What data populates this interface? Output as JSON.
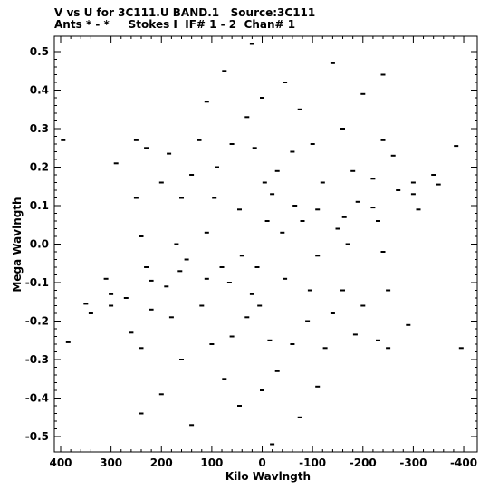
{
  "header": {
    "line1": "V vs U for 3C111.U BAND.1   Source:3C111",
    "line2": "Ants * - *     Stokes I  IF# 1 - 2  Chan# 1"
  },
  "chart_data": {
    "type": "scatter",
    "title": "V vs U for 3C111.U BAND.1   Source:3C111",
    "subtitle": "Ants * - *     Stokes I  IF# 1 - 2  Chan# 1",
    "xlabel": "Kilo Wavlngth",
    "ylabel": "Mega Wavlngth",
    "x_reversed": true,
    "xlim": [
      410,
      -420
    ],
    "ylim": [
      -0.53,
      0.53
    ],
    "xticks": [
      400,
      300,
      200,
      100,
      0,
      -100,
      -200,
      -300,
      -400
    ],
    "yticks": [
      0.5,
      0.4,
      0.3,
      0.2,
      0.1,
      0.0,
      -0.1,
      -0.2,
      -0.3,
      -0.4,
      -0.5
    ],
    "xtick_labels": [
      "400",
      "300",
      "200",
      "100",
      "0",
      "-100",
      "-200",
      "-300",
      "-400"
    ],
    "ytick_labels": [
      "0.5",
      "0.4",
      "0.3",
      "0.2",
      "0.1",
      "0.0",
      "-0.1",
      "-0.2",
      "-0.3",
      "-0.4",
      "-0.5"
    ],
    "pattern_note": "Six-armed snowflake u-v coverage: radial spokes of baseline tracks plus concentric hexagonal rings; points mirrored through origin",
    "series": [
      {
        "values": [
          [
            220,
            -0.095
          ],
          [
            -220,
            0.095
          ],
          [
            163,
            -0.07
          ],
          [
            -163,
            0.07
          ],
          [
            300,
            -0.13
          ],
          [
            -300,
            0.13
          ],
          [
            350,
            -0.155
          ],
          [
            -350,
            0.155
          ],
          [
            385,
            -0.255
          ],
          [
            -385,
            0.255
          ],
          [
            395,
            0.27
          ],
          [
            -395,
            -0.27
          ],
          [
            250,
            0.27
          ],
          [
            -250,
            -0.27
          ],
          [
            95,
            0.12
          ],
          [
            -95,
            -0.12
          ],
          [
            140,
            0.18
          ],
          [
            -140,
            -0.18
          ],
          [
            185,
            0.235
          ],
          [
            -185,
            -0.235
          ],
          [
            -140,
            0.47
          ],
          [
            140,
            -0.47
          ],
          [
            -75,
            0.35
          ],
          [
            75,
            -0.35
          ],
          [
            -30,
            0.19
          ],
          [
            30,
            -0.19
          ],
          [
            0,
            0.38
          ],
          [
            0,
            -0.38
          ],
          [
            -65,
            0.1
          ],
          [
            65,
            -0.1
          ],
          [
            -240,
            0.27
          ],
          [
            240,
            -0.27
          ],
          [
            -300,
            0.16
          ],
          [
            300,
            -0.16
          ],
          [
            -20,
            -0.52
          ],
          [
            20,
            0.52
          ],
          [
            -40,
            0.03
          ],
          [
            40,
            -0.03
          ],
          [
            -80,
            0.06
          ],
          [
            80,
            -0.06
          ],
          [
            -100,
            0.26
          ],
          [
            100,
            -0.26
          ],
          [
            -180,
            0.19
          ],
          [
            180,
            -0.19
          ],
          [
            -200,
            0.39
          ],
          [
            200,
            -0.39
          ],
          [
            -240,
            0.44
          ],
          [
            240,
            -0.44
          ],
          [
            -160,
            0.3
          ],
          [
            160,
            -0.3
          ],
          [
            -120,
            0.16
          ],
          [
            120,
            -0.16
          ],
          [
            -60,
            0.24
          ],
          [
            60,
            -0.24
          ],
          [
            -20,
            0.13
          ],
          [
            20,
            -0.13
          ],
          [
            -10,
            0.06
          ],
          [
            10,
            -0.06
          ],
          [
            -270,
            0.14
          ],
          [
            270,
            -0.14
          ],
          [
            -340,
            0.18
          ],
          [
            340,
            -0.18
          ],
          [
            -230,
            0.06
          ],
          [
            230,
            -0.06
          ],
          [
            -310,
            0.09
          ],
          [
            310,
            -0.09
          ],
          [
            -190,
            0.11
          ],
          [
            190,
            -0.11
          ],
          [
            -150,
            0.04
          ],
          [
            150,
            -0.04
          ],
          [
            -110,
            0.09
          ],
          [
            110,
            -0.09
          ],
          [
            -260,
            0.23
          ],
          [
            260,
            -0.23
          ],
          [
            -220,
            0.17
          ],
          [
            220,
            -0.17
          ],
          [
            -45,
            0.42
          ],
          [
            45,
            -0.42
          ],
          [
            30,
            0.33
          ],
          [
            -30,
            -0.33
          ],
          [
            60,
            0.26
          ],
          [
            -60,
            -0.26
          ],
          [
            90,
            0.2
          ],
          [
            -90,
            -0.2
          ],
          [
            125,
            0.27
          ],
          [
            -125,
            -0.27
          ],
          [
            160,
            0.12
          ],
          [
            -160,
            -0.12
          ],
          [
            200,
            0.16
          ],
          [
            -200,
            -0.16
          ],
          [
            250,
            0.12
          ],
          [
            -250,
            -0.12
          ],
          [
            45,
            0.09
          ],
          [
            -45,
            -0.09
          ],
          [
            110,
            0.03
          ],
          [
            -110,
            -0.03
          ],
          [
            170,
            0.0
          ],
          [
            -170,
            0.0
          ],
          [
            240,
            0.02
          ],
          [
            -240,
            -0.02
          ],
          [
            290,
            0.21
          ],
          [
            -290,
            -0.21
          ],
          [
            230,
            0.25
          ],
          [
            -230,
            -0.25
          ],
          [
            75,
            0.45
          ],
          [
            -75,
            -0.45
          ],
          [
            110,
            0.37
          ],
          [
            -110,
            -0.37
          ],
          [
            15,
            0.25
          ],
          [
            -15,
            -0.25
          ],
          [
            -5,
            0.16
          ],
          [
            5,
            -0.16
          ]
        ]
      }
    ]
  }
}
